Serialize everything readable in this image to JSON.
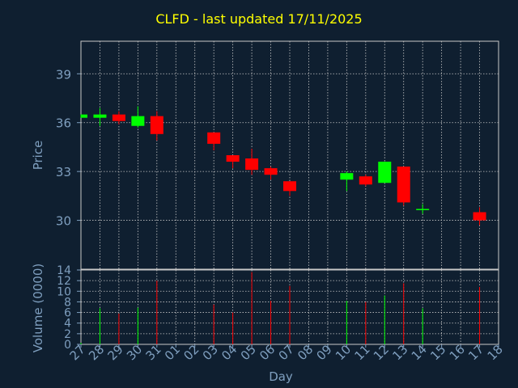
{
  "chart_data": {
    "type": "candlestick",
    "title": "CLFD - last updated 17/11/2025",
    "xlabel": "Day",
    "colors": {
      "background": "#0f1f30",
      "up": "#00ff00",
      "down": "#ff0000",
      "grid": "#c8c8c8",
      "label": "#7f9fbf",
      "title": "#ffff00"
    },
    "grid": true,
    "x_tick_labels": [
      "27",
      "28",
      "29",
      "30",
      "31",
      "01",
      "02",
      "03",
      "04",
      "05",
      "06",
      "07",
      "08",
      "09",
      "10",
      "11",
      "12",
      "13",
      "14",
      "15",
      "16",
      "17",
      "18"
    ],
    "price_axis": {
      "label": "Price",
      "ticks": [
        30,
        33,
        36,
        39
      ],
      "ylim": [
        27,
        41
      ]
    },
    "volume_axis": {
      "label": "Volume (0000)",
      "ticks": [
        0,
        2,
        4,
        6,
        8,
        10,
        12,
        14
      ],
      "ylim": [
        0,
        14
      ]
    },
    "candles": [
      {
        "day": "27",
        "open": 36.3,
        "close": 36.5,
        "high": 36.5,
        "low": 36.3,
        "volume": 0.3
      },
      {
        "day": "28",
        "open": 36.3,
        "close": 36.5,
        "high": 36.9,
        "low": 35.8,
        "volume": 6.8
      },
      {
        "day": "29",
        "open": 36.5,
        "close": 36.1,
        "high": 36.7,
        "low": 35.9,
        "volume": 5.8
      },
      {
        "day": "30",
        "open": 35.8,
        "close": 36.4,
        "high": 37.0,
        "low": 35.7,
        "volume": 6.9
      },
      {
        "day": "31",
        "open": 36.4,
        "close": 35.3,
        "high": 36.7,
        "low": 34.9,
        "volume": 12.0
      },
      {
        "day": "03",
        "open": 35.4,
        "close": 34.7,
        "high": 35.4,
        "low": 34.3,
        "volume": 7.5
      },
      {
        "day": "04",
        "open": 34.0,
        "close": 33.6,
        "high": 34.0,
        "low": 33.2,
        "volume": 6.0
      },
      {
        "day": "05",
        "open": 33.8,
        "close": 33.1,
        "high": 34.4,
        "low": 32.8,
        "volume": 13.6
      },
      {
        "day": "06",
        "open": 33.2,
        "close": 32.8,
        "high": 33.3,
        "low": 32.5,
        "volume": 8.2
      },
      {
        "day": "07",
        "open": 32.4,
        "close": 31.8,
        "high": 32.4,
        "low": 31.5,
        "volume": 11.0
      },
      {
        "day": "10",
        "open": 32.5,
        "close": 32.9,
        "high": 33.0,
        "low": 31.8,
        "volume": 8.2
      },
      {
        "day": "11",
        "open": 32.7,
        "close": 32.2,
        "high": 32.8,
        "low": 32.1,
        "volume": 8.0
      },
      {
        "day": "12",
        "open": 32.3,
        "close": 33.6,
        "high": 33.6,
        "low": 32.3,
        "volume": 9.2
      },
      {
        "day": "13",
        "open": 33.3,
        "close": 31.1,
        "high": 33.3,
        "low": 30.9,
        "volume": 11.5
      },
      {
        "day": "14",
        "open": 30.7,
        "close": 30.7,
        "high": 31.0,
        "low": 30.4,
        "volume": 6.8
      },
      {
        "day": "17",
        "open": 30.5,
        "close": 30.0,
        "high": 30.8,
        "low": 29.7,
        "volume": 10.8
      }
    ]
  }
}
